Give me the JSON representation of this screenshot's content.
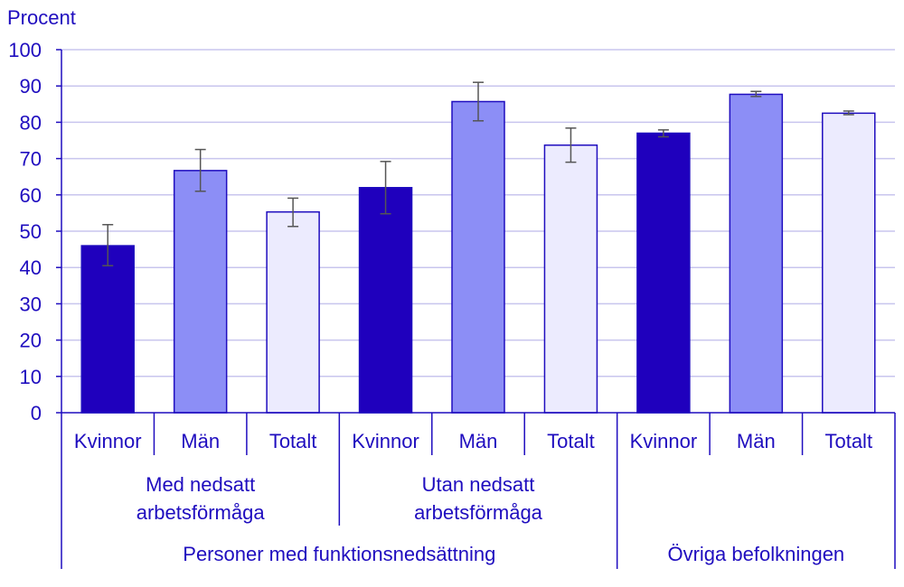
{
  "chart_data": {
    "type": "bar",
    "ylabel": "Procent",
    "ylim": [
      0,
      100
    ],
    "yticks": [
      0,
      10,
      20,
      30,
      40,
      50,
      60,
      70,
      80,
      90,
      100
    ],
    "grid": true,
    "categories": [
      "Kvinnor",
      "Män",
      "Totalt",
      "Kvinnor",
      "Män",
      "Totalt",
      "Kvinnor",
      "Män",
      "Totalt"
    ],
    "values": [
      46,
      66.7,
      55.3,
      62,
      85.7,
      73.7,
      77,
      87.7,
      82.5
    ],
    "error_low": [
      40.5,
      61,
      51.3,
      54.8,
      80.4,
      69,
      76,
      87.1,
      82.1
    ],
    "error_high": [
      51.8,
      72.5,
      59.1,
      69.2,
      91,
      78.4,
      77.9,
      88.5,
      83.1
    ],
    "bar_colors": [
      "#1f00bd",
      "#8c8ef6",
      "#ecebfe",
      "#1f00bd",
      "#8c8ef6",
      "#ecebfe",
      "#1f00bd",
      "#8c8ef6",
      "#ecebfe"
    ],
    "groups_level1": [
      {
        "label_lines": [
          "Med nedsatt",
          "arbetsförmåga"
        ],
        "span": [
          0,
          2
        ]
      },
      {
        "label_lines": [
          "Utan nedsatt",
          "arbetsförmåga"
        ],
        "span": [
          3,
          5
        ]
      },
      {
        "label_lines": [],
        "span": [
          6,
          8
        ]
      }
    ],
    "groups_level2": [
      {
        "label": "Personer med funktionsnedsättning",
        "span": [
          0,
          5
        ]
      },
      {
        "label": "Övriga befolkningen",
        "span": [
          6,
          8
        ]
      }
    ]
  },
  "colors": {
    "text": "#1f0dbf",
    "axis": "#1f0dbf",
    "grid": "#c8c5ee",
    "bar_border": "#1f0dbf",
    "error": "#555555"
  }
}
